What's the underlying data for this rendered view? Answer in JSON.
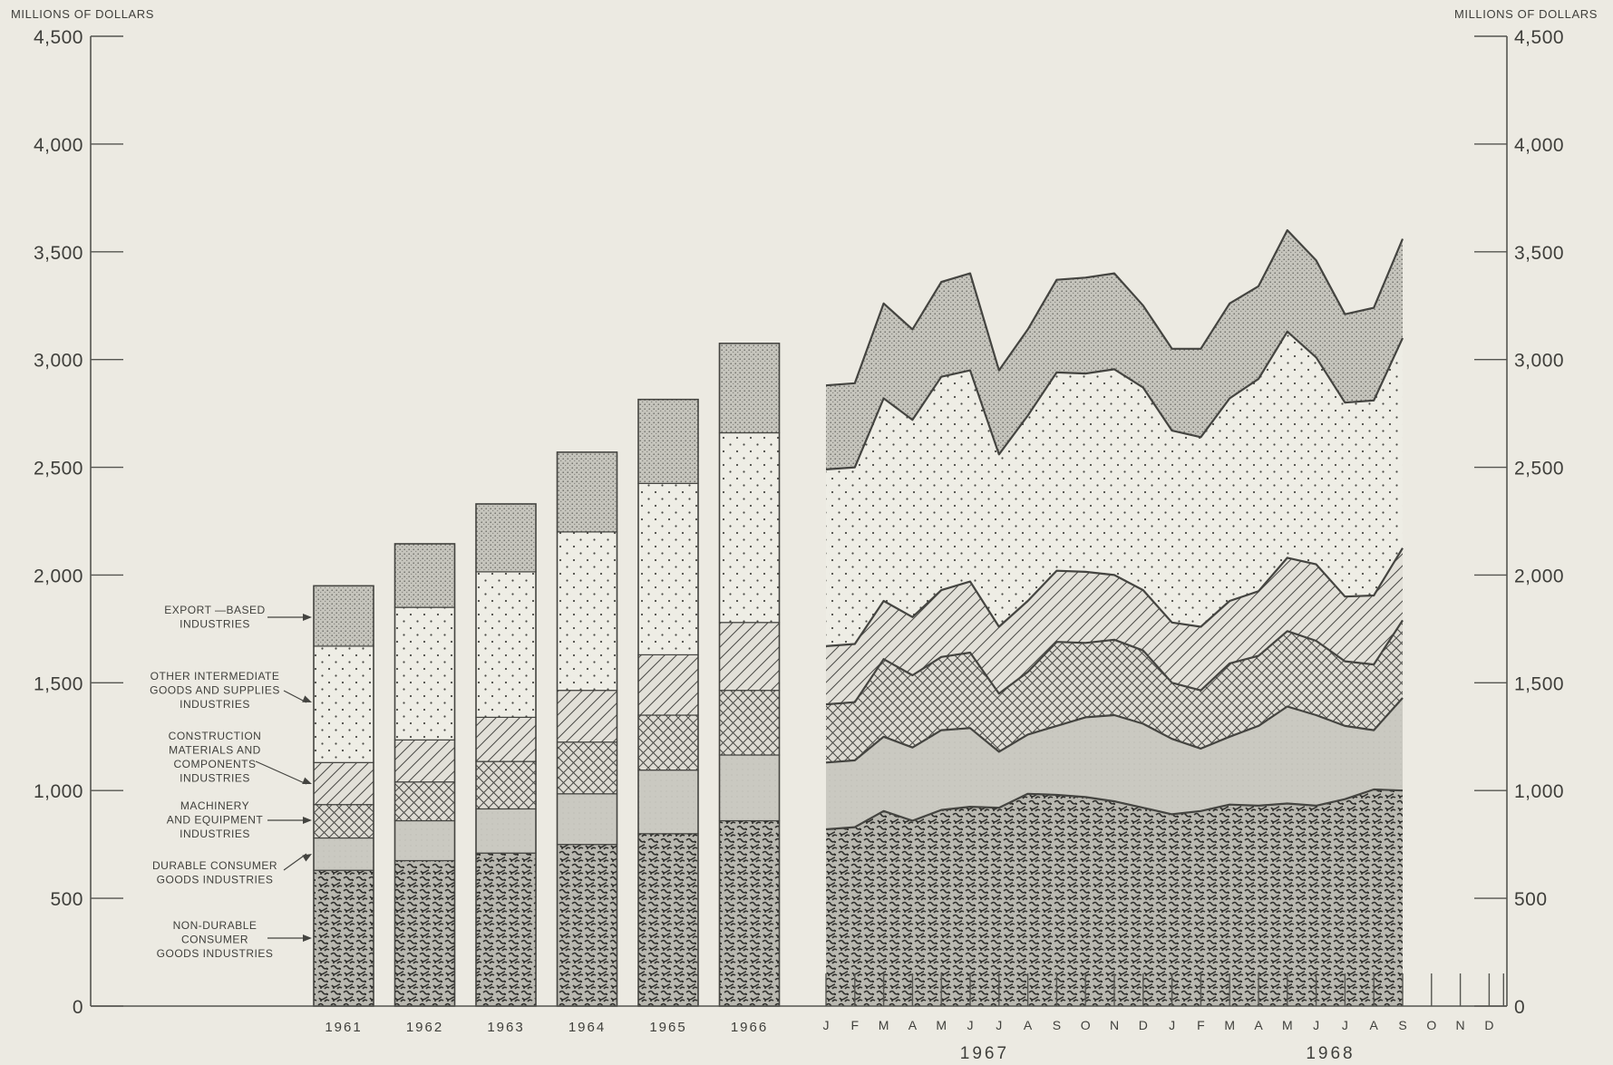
{
  "chart_data": {
    "type": "area",
    "title": "",
    "unit_label_left": "MILLIONS OF DOLLARS",
    "unit_label_right": "MILLIONS OF DOLLARS",
    "ylim": [
      0,
      4500
    ],
    "y_ticks": [
      0,
      500,
      1000,
      1500,
      2000,
      2500,
      3000,
      3500,
      4000,
      4500
    ],
    "y_tick_labels": [
      "0",
      "500",
      "1,000",
      "1,500",
      "2,000",
      "2,500",
      "3,000",
      "3,500",
      "4,000",
      "4,500"
    ],
    "series_order": [
      "Non-durable consumer goods industries",
      "Durable consumer goods industries",
      "Machinery and equipment industries",
      "Construction materials and components industries",
      "Other intermediate goods and supplies industries",
      "Export-based industries"
    ],
    "legend": [
      {
        "key": "nondurable",
        "lines": [
          "NON-DURABLE",
          "CONSUMER",
          "GOODS INDUSTRIES"
        ]
      },
      {
        "key": "durable",
        "lines": [
          "DURABLE CONSUMER",
          "GOODS INDUSTRIES"
        ]
      },
      {
        "key": "machinery",
        "lines": [
          "MACHINERY",
          "AND EQUIPMENT",
          "INDUSTRIES"
        ]
      },
      {
        "key": "construction",
        "lines": [
          "CONSTRUCTION",
          "MATERIALS AND",
          "COMPONENTS",
          "INDUSTRIES"
        ]
      },
      {
        "key": "intermediate",
        "lines": [
          "OTHER INTERMEDIATE",
          "GOODS AND SUPPLIES",
          "INDUSTRIES"
        ]
      },
      {
        "key": "export",
        "lines": [
          "EXPORT —BASED",
          "INDUSTRIES"
        ]
      }
    ],
    "annual": {
      "years": [
        "1961",
        "1962",
        "1963",
        "1964",
        "1965",
        "1966"
      ],
      "cumulative": [
        {
          "nondurable": 630,
          "durable": 780,
          "machinery": 935,
          "construction": 1130,
          "intermediate": 1670,
          "export": 1950
        },
        {
          "nondurable": 675,
          "durable": 860,
          "machinery": 1040,
          "construction": 1235,
          "intermediate": 1850,
          "export": 2145
        },
        {
          "nondurable": 710,
          "durable": 915,
          "machinery": 1135,
          "construction": 1340,
          "intermediate": 2015,
          "export": 2330
        },
        {
          "nondurable": 750,
          "durable": 985,
          "machinery": 1225,
          "construction": 1465,
          "intermediate": 2200,
          "export": 2570
        },
        {
          "nondurable": 800,
          "durable": 1095,
          "machinery": 1350,
          "construction": 1630,
          "intermediate": 2425,
          "export": 2815
        },
        {
          "nondurable": 860,
          "durable": 1165,
          "machinery": 1465,
          "construction": 1780,
          "intermediate": 2660,
          "export": 3075
        }
      ]
    },
    "monthly": {
      "month_labels": [
        "J",
        "F",
        "M",
        "A",
        "M",
        "J",
        "J",
        "A",
        "S",
        "O",
        "N",
        "D",
        "J",
        "F",
        "M",
        "A",
        "M",
        "J",
        "J",
        "A",
        "S",
        "O",
        "N",
        "D"
      ],
      "year_labels": [
        {
          "label": "1967",
          "start": 0,
          "end": 11
        },
        {
          "label": "1968",
          "start": 12,
          "end": 23
        }
      ],
      "cumulative": {
        "nondurable": [
          820,
          830,
          905,
          860,
          910,
          925,
          920,
          985,
          980,
          970,
          950,
          920,
          890,
          905,
          935,
          930,
          940,
          930,
          960,
          1005,
          1000
        ],
        "durable": [
          1130,
          1140,
          1250,
          1200,
          1280,
          1290,
          1180,
          1260,
          1300,
          1340,
          1350,
          1310,
          1240,
          1195,
          1250,
          1300,
          1390,
          1350,
          1300,
          1280,
          1430
        ],
        "machinery": [
          1400,
          1410,
          1610,
          1535,
          1620,
          1640,
          1450,
          1550,
          1690,
          1685,
          1700,
          1650,
          1500,
          1465,
          1590,
          1625,
          1740,
          1695,
          1600,
          1585,
          1790
        ],
        "construction": [
          1670,
          1680,
          1880,
          1805,
          1930,
          1970,
          1760,
          1880,
          2020,
          2015,
          2000,
          1930,
          1780,
          1760,
          1880,
          1925,
          2080,
          2050,
          1900,
          1905,
          2125
        ],
        "intermediate": [
          2490,
          2500,
          2820,
          2720,
          2920,
          2950,
          2560,
          2740,
          2940,
          2935,
          2955,
          2870,
          2670,
          2640,
          2820,
          2910,
          3130,
          3010,
          2800,
          2810,
          3100
        ],
        "export": [
          2880,
          2890,
          3260,
          3140,
          3360,
          3400,
          2950,
          3140,
          3370,
          3380,
          3400,
          3250,
          3050,
          3050,
          3260,
          3340,
          3600,
          3460,
          3210,
          3240,
          3560
        ]
      }
    },
    "fill_colors": {
      "nondurable": "#8f8f88",
      "durable": "#c7c7bf",
      "machinery": "#dcdad2",
      "construction": "#e0ded6",
      "intermediate": "#ecebe3",
      "export": "#c5c4bc"
    }
  }
}
